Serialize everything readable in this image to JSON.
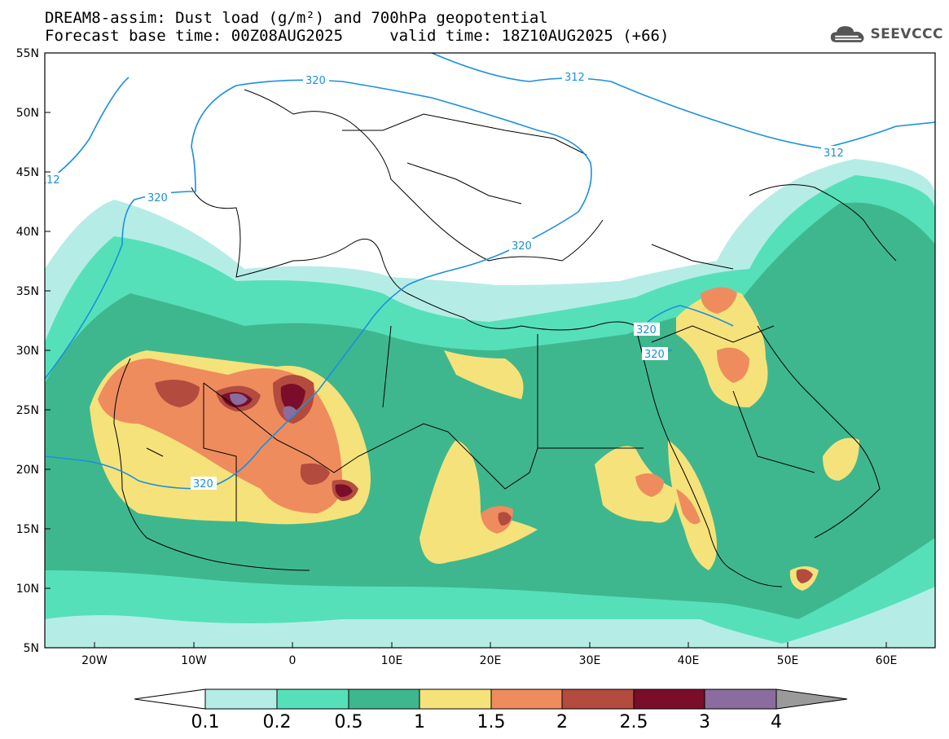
{
  "header": {
    "line1": "DREAM8-assim: Dust load (g/m²) and 700hPa geopotential",
    "line2": "Forecast base time: 00Z08AUG2025     valid time: 18Z10AUG2025 (+66)"
  },
  "logo": {
    "text": "SEEVCCC",
    "icon": "cloud-icon"
  },
  "axes": {
    "lat_labels": [
      "55N",
      "50N",
      "45N",
      "40N",
      "35N",
      "30N",
      "25N",
      "20N",
      "15N",
      "10N",
      "5N"
    ],
    "lon_labels": [
      "20W",
      "10W",
      "0",
      "10E",
      "20E",
      "30E",
      "40E",
      "50E",
      "60E"
    ]
  },
  "contours": {
    "color": "#1a8fe0",
    "labels": [
      "320",
      "312",
      "312",
      "320",
      "320",
      "320",
      "320",
      "12",
      "320"
    ]
  },
  "colorbar": {
    "levels": [
      "0.1",
      "0.2",
      "0.5",
      "1",
      "1.5",
      "2",
      "2.5",
      "3",
      "4"
    ],
    "colors": [
      "#ffffff",
      "#b5ede6",
      "#56e0b9",
      "#3fb78e",
      "#f6e27a",
      "#ee8c5e",
      "#b34b3f",
      "#7a0d2a",
      "#8a6c9e",
      "#9a9a9a"
    ]
  },
  "legend": {
    "quantity": "Dust load (g/m²)"
  }
}
